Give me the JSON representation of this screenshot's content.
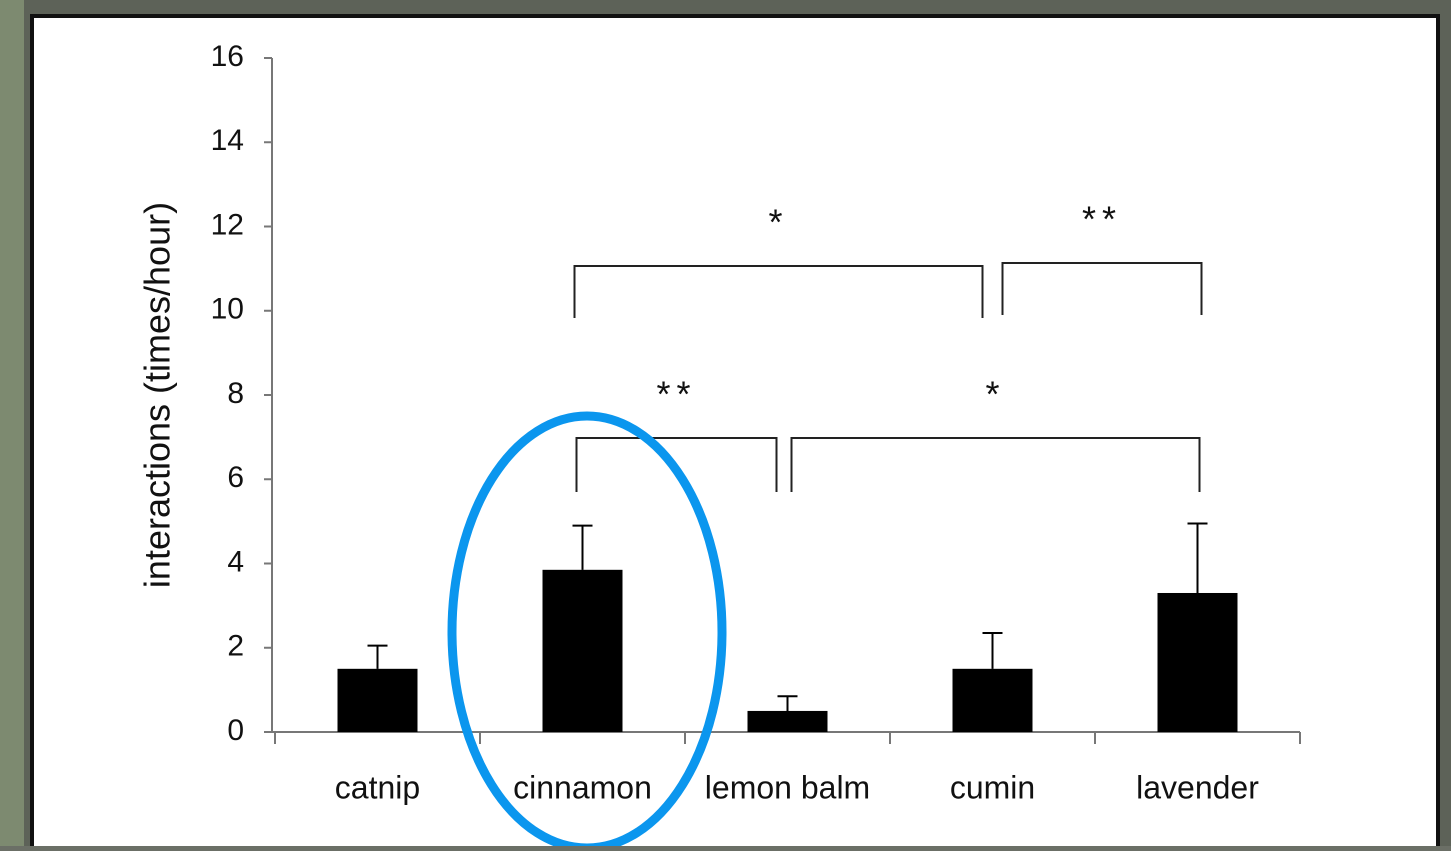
{
  "chart_data": {
    "type": "bar",
    "y_label": "interactions (times/hour)",
    "categories": [
      "catnip",
      "cinnamon",
      "lemon balm",
      "cumin",
      "lavender"
    ],
    "values": [
      1.5,
      3.85,
      0.5,
      1.5,
      3.3
    ],
    "errors": [
      0.55,
      1.05,
      0.35,
      0.85,
      1.65
    ],
    "color": "#000000",
    "ylim": [
      0,
      16
    ],
    "yticks": [
      0,
      2,
      4,
      6,
      8,
      10,
      12,
      14,
      16
    ],
    "annotations": [
      "*",
      "**",
      "**",
      "*"
    ]
  }
}
